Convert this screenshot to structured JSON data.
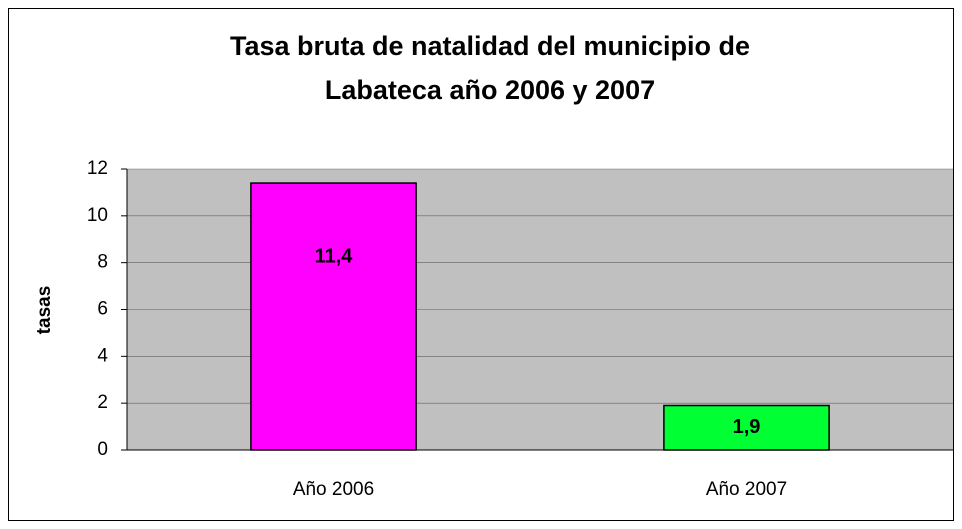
{
  "chart_data": {
    "type": "bar",
    "title_lines": [
      "Tasa bruta de natalidad del municipio de",
      "Labateca año 2006 y 2007"
    ],
    "ylabel": "tasas",
    "categories": [
      "Año 2006",
      "Año 2007"
    ],
    "values": [
      11.4,
      1.9
    ],
    "value_labels": [
      "11,4",
      "1,9"
    ],
    "colors": [
      "#ff00ff",
      "#00ff33"
    ],
    "ylim": [
      0,
      12
    ],
    "yticks": [
      0,
      2,
      4,
      6,
      8,
      10,
      12
    ],
    "grid": true
  }
}
